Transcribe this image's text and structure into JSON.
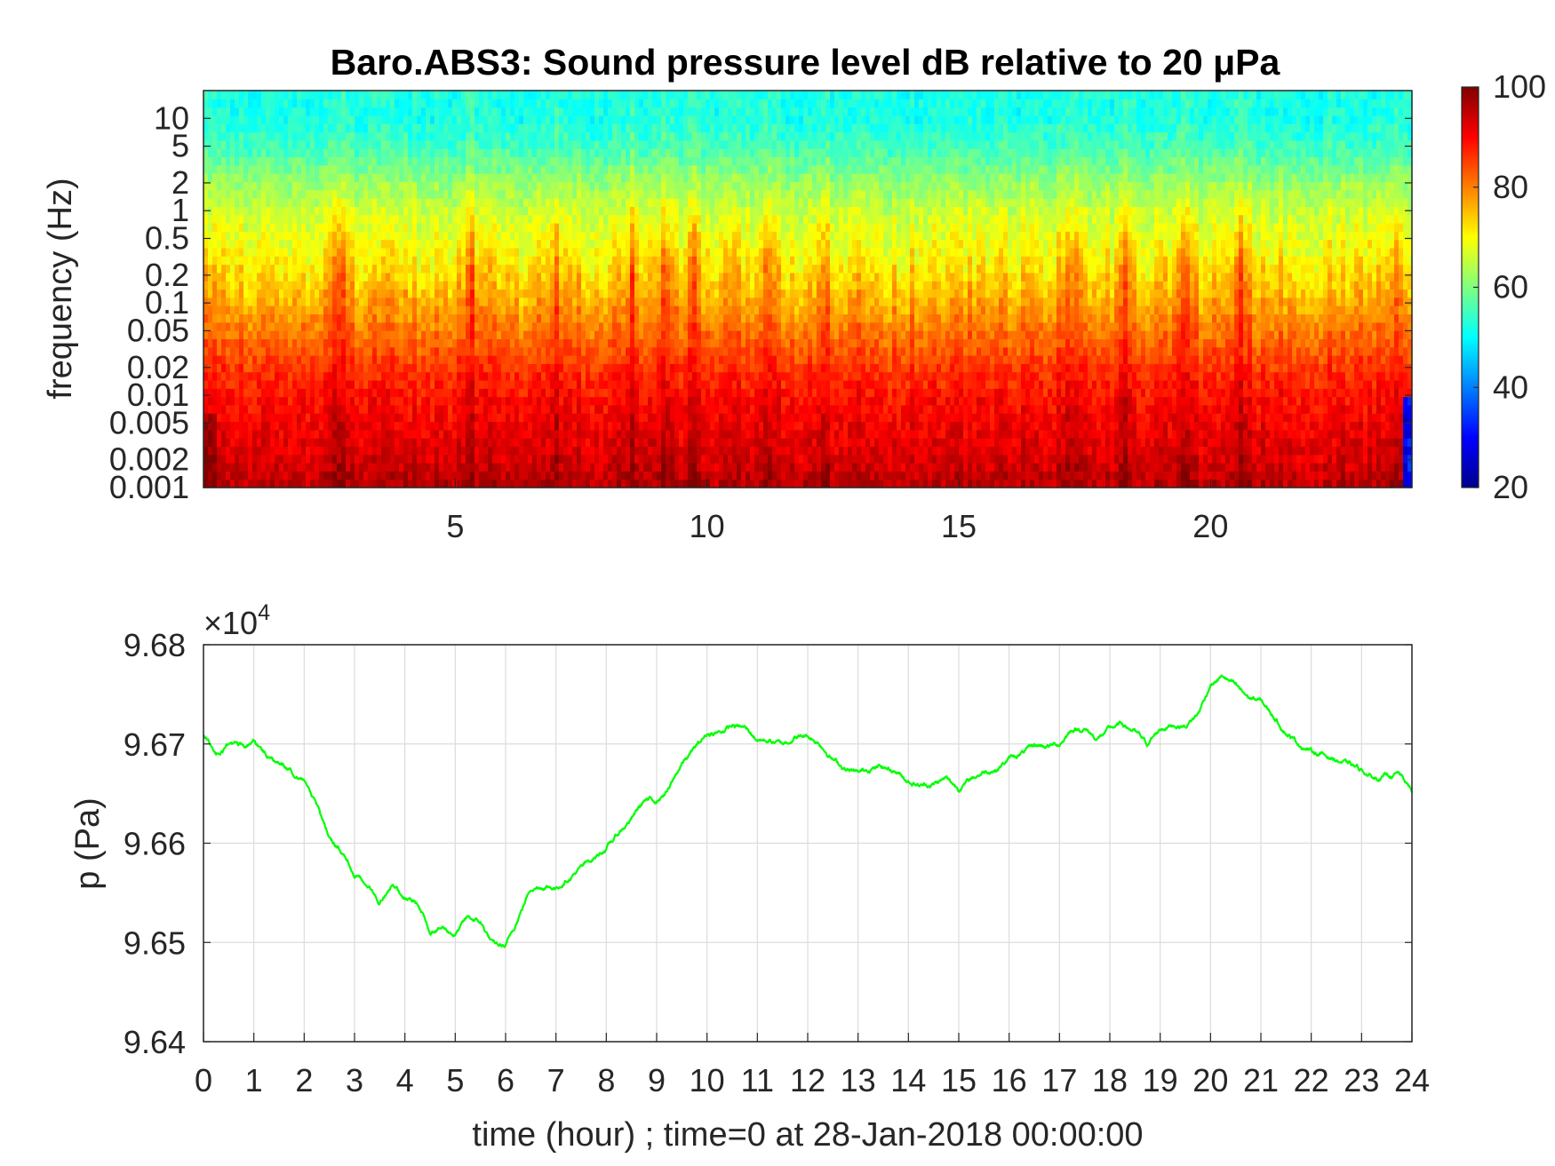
{
  "chart_data": [
    {
      "type": "heatmap",
      "title": "Baro.ABS3: Sound pressure level dB relative to 20 μPa",
      "xlabel": "",
      "ylabel": "frequency (Hz)",
      "xlim": [
        0,
        24
      ],
      "x_ticks": [
        5,
        10,
        15,
        20
      ],
      "x_tick_labels": [
        "5",
        "10",
        "15",
        "20"
      ],
      "y_scale": "log",
      "ylim": [
        0.001,
        20
      ],
      "y_ticks": [
        0.001,
        0.002,
        0.005,
        0.01,
        0.02,
        0.05,
        0.1,
        0.2,
        0.5,
        1,
        2,
        5,
        10
      ],
      "y_tick_labels": [
        "0.001",
        "0.002",
        "0.005",
        "0.01",
        "0.02",
        "0.05",
        "0.1",
        "0.2",
        "0.5",
        "1",
        "2",
        "5",
        "10"
      ],
      "colormap": "jet",
      "colorbar": {
        "range": [
          20,
          100
        ],
        "ticks": [
          20,
          40,
          60,
          80,
          100
        ],
        "tick_labels": [
          "20",
          "40",
          "60",
          "80",
          "100"
        ],
        "placement": "right"
      },
      "level_profile": {
        "frequencies_hz": [
          0.001,
          0.002,
          0.005,
          0.01,
          0.02,
          0.05,
          0.1,
          0.2,
          0.5,
          1,
          2,
          5,
          10,
          20
        ],
        "typical_db": [
          96,
          93,
          91,
          89,
          86,
          81,
          77,
          73,
          69,
          66,
          62,
          55,
          52,
          52
        ]
      },
      "broadband_bursts_hour": [
        2.7,
        5.3,
        7.0,
        8.5,
        9.2,
        9.7,
        11.2,
        12.3,
        17.2,
        18.3,
        19.5,
        20.6,
        23.7
      ]
    },
    {
      "type": "line",
      "title": "",
      "xlabel": "time (hour) ; time=0 at 28-Jan-2018 00:00:00",
      "ylabel": "p (Pa)",
      "y_multiplier_label": "×10",
      "y_multiplier_exponent": "4",
      "xlim": [
        0,
        24
      ],
      "ylim": [
        96400,
        96800
      ],
      "grid": true,
      "x_ticks": [
        0,
        1,
        2,
        3,
        4,
        5,
        6,
        7,
        8,
        9,
        10,
        11,
        12,
        13,
        14,
        15,
        16,
        17,
        18,
        19,
        20,
        21,
        22,
        23,
        24
      ],
      "x_tick_labels": [
        "0",
        "1",
        "2",
        "3",
        "4",
        "5",
        "6",
        "7",
        "8",
        "9",
        "10",
        "11",
        "12",
        "13",
        "14",
        "15",
        "16",
        "17",
        "18",
        "19",
        "20",
        "21",
        "22",
        "23",
        "24"
      ],
      "y_ticks": [
        96400,
        96500,
        96600,
        96700,
        96800
      ],
      "y_tick_labels": [
        "9.64",
        "9.65",
        "9.66",
        "9.67",
        "9.68"
      ],
      "series": [
        {
          "color": "#00ff00",
          "x": [
            0,
            0.25,
            0.5,
            0.75,
            1,
            1.25,
            1.5,
            1.75,
            2,
            2.25,
            2.5,
            2.75,
            3,
            3.25,
            3.5,
            3.75,
            4,
            4.25,
            4.5,
            4.75,
            5,
            5.25,
            5.5,
            5.75,
            6,
            6.25,
            6.5,
            6.75,
            7,
            7.25,
            7.5,
            7.75,
            8,
            8.25,
            8.5,
            8.75,
            9,
            9.25,
            9.5,
            9.75,
            10,
            10.25,
            10.5,
            10.75,
            11,
            11.25,
            11.5,
            11.75,
            12,
            12.25,
            12.5,
            12.75,
            13,
            13.25,
            13.5,
            13.75,
            14,
            14.25,
            14.5,
            14.75,
            15,
            15.25,
            15.5,
            15.75,
            16,
            16.25,
            16.5,
            16.75,
            17,
            17.25,
            17.5,
            17.75,
            18,
            18.25,
            18.5,
            18.75,
            19,
            19.25,
            19.5,
            19.75,
            20,
            20.25,
            20.5,
            20.75,
            21,
            21.25,
            21.5,
            21.75,
            22,
            22.25,
            22.5,
            22.75,
            23,
            23.25,
            23.5,
            23.75,
            24
          ],
          "y": [
            96708,
            96690,
            96698,
            96699,
            96700,
            96688,
            96680,
            96673,
            96662,
            96635,
            96605,
            96590,
            96570,
            96560,
            96540,
            96558,
            96545,
            96538,
            96512,
            96515,
            96508,
            96525,
            96520,
            96498,
            96495,
            96525,
            96555,
            96557,
            96555,
            96565,
            96575,
            96585,
            96595,
            96610,
            96625,
            96643,
            96643,
            96655,
            96680,
            96695,
            96710,
            96712,
            96718,
            96716,
            96705,
            96703,
            96700,
            96707,
            96708,
            96700,
            96685,
            96675,
            96670,
            96676,
            96677,
            96673,
            96663,
            96658,
            96660,
            96665,
            96655,
            96665,
            96672,
            96675,
            96685,
            96690,
            96698,
            96698,
            96700,
            96715,
            96715,
            96705,
            96715,
            96720,
            96712,
            96700,
            96715,
            96720,
            96718,
            96730,
            96760,
            96768,
            96758,
            96747,
            96743,
            96728,
            96712,
            96700,
            96693,
            96689,
            96684,
            96679,
            96674,
            96665,
            96668,
            96670,
            96652
          ]
        }
      ]
    }
  ]
}
